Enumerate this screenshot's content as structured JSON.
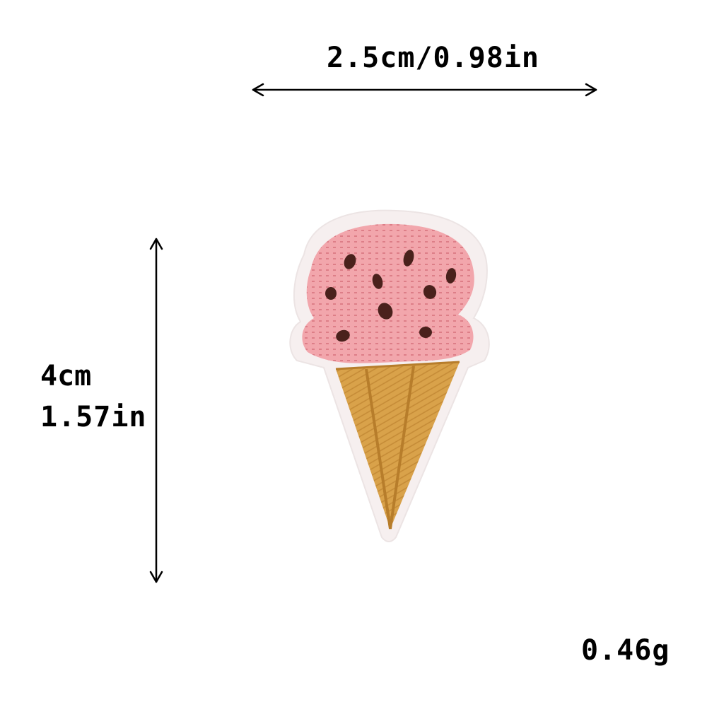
{
  "dimensions": {
    "width": "2.5cm/0.98in",
    "height_cm": "4cm",
    "height_in": "1.57in"
  },
  "weight": "0.46g",
  "product": {
    "icon": "ice-cream-cone-patch-icon",
    "colors": {
      "felt_border": "#f6efef",
      "scoop": "#f2a6ac",
      "scoop_stitch": "#d8747e",
      "chips": "#4a211c",
      "cone": "#d9a24a",
      "cone_shadow": "#b77d2b"
    }
  }
}
